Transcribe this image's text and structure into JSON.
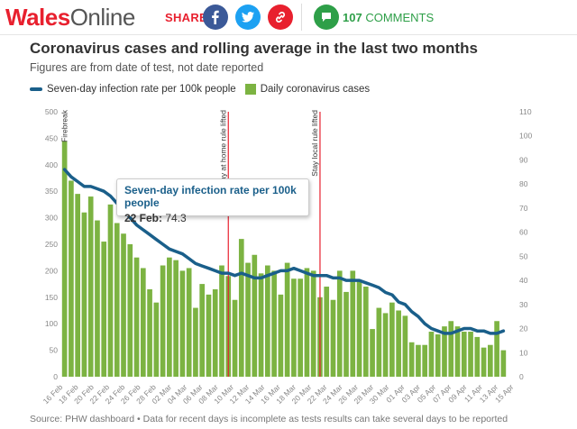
{
  "header": {
    "logo_part1": "Wales",
    "logo_part2": "Online",
    "share_label": "SHARE",
    "comments_count": "107",
    "comments_label": "COMMENTS",
    "icons": [
      "facebook-icon",
      "twitter-icon",
      "link-icon",
      "comment-icon"
    ]
  },
  "title": "Coronavirus cases and rolling average in the last two months",
  "subtitle": "Figures are from date of test, not date reported",
  "legend": {
    "line_label": "Seven-day infection rate per 100k people",
    "bar_label": "Daily coronavirus cases"
  },
  "tooltip": {
    "title": "Seven-day infection rate per 100k people",
    "date": "22 Feb:",
    "value": "74.3"
  },
  "source": "Source: PHW dashboard • Data for recent days is incomplete as tests results can take several days to be reported",
  "colors": {
    "bars": "#7cb342",
    "line": "#1a5f8a",
    "annotation": "#e8202e"
  },
  "chart_data": {
    "type": "bar+line",
    "x_ticks": [
      "16 Feb",
      "18 Feb",
      "20 Feb",
      "22 Feb",
      "24 Feb",
      "26 Feb",
      "28 Feb",
      "02 Mar",
      "04 Mar",
      "06 Mar",
      "08 Mar",
      "10 Mar",
      "12 Mar",
      "14 Mar",
      "16 Mar",
      "18 Mar",
      "20 Mar",
      "22 Mar",
      "24 Mar",
      "26 Mar",
      "28 Mar",
      "30 Mar",
      "01 Apr",
      "03 Apr",
      "05 Apr",
      "07 Apr",
      "09 Apr",
      "11 Apr",
      "13 Apr",
      "15 Apr"
    ],
    "y_left_ticks": [
      "0",
      "50",
      "100",
      "150",
      "200",
      "250",
      "300",
      "350",
      "400",
      "450",
      "500"
    ],
    "y_right_ticks": [
      "0",
      "10",
      "20",
      "30",
      "40",
      "50",
      "60",
      "70",
      "80",
      "90",
      "100",
      "110"
    ],
    "y_left_range": [
      0,
      500
    ],
    "y_right_range": [
      0,
      110
    ],
    "annotations": [
      {
        "label": "Firebreak",
        "day": 0
      },
      {
        "label": "Stay at home rule lifted",
        "day": 25
      },
      {
        "label": "Stay local rule lifted",
        "day": 39
      }
    ],
    "series": [
      {
        "name": "Daily coronavirus cases",
        "kind": "bar",
        "values": [
          445,
          370,
          345,
          310,
          340,
          295,
          255,
          325,
          290,
          270,
          250,
          225,
          205,
          165,
          140,
          210,
          225,
          220,
          200,
          205,
          130,
          175,
          155,
          165,
          210,
          190,
          145,
          260,
          215,
          230,
          195,
          210,
          200,
          155,
          215,
          185,
          185,
          205,
          200,
          150,
          170,
          145,
          200,
          160,
          200,
          180,
          170,
          90,
          130,
          120,
          140,
          125,
          115,
          65,
          60,
          60,
          85,
          80,
          95,
          105,
          95,
          85,
          85,
          75,
          55,
          60,
          105,
          50
        ]
      },
      {
        "name": "Seven-day infection rate per 100k people",
        "kind": "line",
        "values": [
          86,
          83,
          81,
          79,
          79,
          78,
          77,
          75,
          72,
          69,
          66,
          63,
          61,
          59,
          57,
          55,
          53,
          52,
          51,
          49,
          47,
          46,
          45,
          44,
          43,
          43,
          42,
          43,
          42,
          41,
          41,
          42,
          43,
          44,
          44,
          45,
          44,
          43,
          42,
          42,
          42,
          41,
          41,
          40,
          40,
          40,
          39,
          38,
          37,
          35,
          34,
          31,
          30,
          27,
          25,
          22,
          20,
          19,
          18,
          18,
          19,
          20,
          20,
          19,
          19,
          18,
          18,
          19
        ]
      }
    ]
  }
}
